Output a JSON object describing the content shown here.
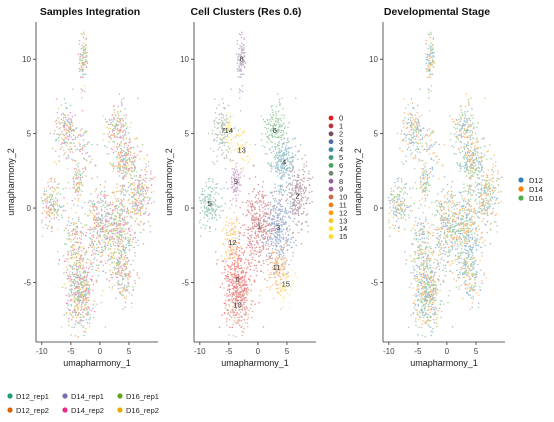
{
  "chart_data": [
    {
      "type": "scatter",
      "title": "Samples Integration",
      "xlabel": "umapharmony_1",
      "ylabel": "umapharmony_2",
      "xticks": [
        -10,
        -5,
        0,
        5
      ],
      "yticks": [
        -5,
        0,
        5,
        10
      ],
      "xlim": [
        -11,
        10
      ],
      "ylim": [
        -9,
        12.5
      ],
      "legend_position": "bottom",
      "series": [
        {
          "name": "D12_rep1",
          "color": "#1b9e77"
        },
        {
          "name": "D12_rep2",
          "color": "#d95f02"
        },
        {
          "name": "D14_rep1",
          "color": "#7570b3"
        },
        {
          "name": "D14_rep2",
          "color": "#e7298a"
        },
        {
          "name": "D16_rep1",
          "color": "#66a61e"
        },
        {
          "name": "D16_rep2",
          "color": "#e6ab02"
        }
      ]
    },
    {
      "type": "scatter",
      "title": "Cell Clusters (Res 0.6)",
      "xlabel": "umapharmony_1",
      "ylabel": "umapharmony_2",
      "xticks": [
        -10,
        -5,
        0,
        5
      ],
      "yticks": [
        -5,
        0,
        5,
        10
      ],
      "xlim": [
        -11,
        10
      ],
      "ylim": [
        -9,
        12.5
      ],
      "legend_position": "right",
      "clusters": [
        {
          "id": "0",
          "color": "#e41a1c",
          "x": -3.5,
          "y": -4.8
        },
        {
          "id": "1",
          "color": "#b7353c",
          "x": 0.2,
          "y": -1.2
        },
        {
          "id": "2",
          "color": "#7e4c61",
          "x": 6.8,
          "y": 0.8
        },
        {
          "id": "3",
          "color": "#4a70a8",
          "x": 3.5,
          "y": -1.3
        },
        {
          "id": "4",
          "color": "#3b8aa2",
          "x": 4.5,
          "y": 3.1
        },
        {
          "id": "5",
          "color": "#409c74",
          "x": -8.3,
          "y": 0.3
        },
        {
          "id": "6",
          "color": "#4aa35a",
          "x": 2.9,
          "y": 5.2
        },
        {
          "id": "7",
          "color": "#6b8a6f",
          "x": -6.0,
          "y": 5.2
        },
        {
          "id": "8",
          "color": "#8d639a",
          "x": -2.8,
          "y": 10.0
        },
        {
          "id": "9",
          "color": "#a35b9f",
          "x": -3.8,
          "y": 1.8
        },
        {
          "id": "10",
          "color": "#ca6b49",
          "x": -3.5,
          "y": -6.5
        },
        {
          "id": "11",
          "color": "#ee7d1d",
          "x": 3.2,
          "y": -4.0
        },
        {
          "id": "12",
          "color": "#fe9c07",
          "x": -4.4,
          "y": -2.3
        },
        {
          "id": "13",
          "color": "#ffc41f",
          "x": -2.8,
          "y": 3.9
        },
        {
          "id": "14",
          "color": "#ffe52e",
          "x": -5.0,
          "y": 5.2
        },
        {
          "id": "15",
          "color": "#ffd92f",
          "x": 4.8,
          "y": -5.1
        }
      ]
    },
    {
      "type": "scatter",
      "title": "Developmental Stage",
      "xlabel": "umapharmony_1",
      "ylabel": "umapharmony_2",
      "xticks": [
        -10,
        -5,
        0,
        5
      ],
      "yticks": [
        -5,
        0,
        5,
        10
      ],
      "xlim": [
        -11,
        10
      ],
      "ylim": [
        -9,
        12.5
      ],
      "legend_position": "right",
      "series": [
        {
          "name": "D12",
          "color": "#377eb8"
        },
        {
          "name": "D14",
          "color": "#ff7f00"
        },
        {
          "name": "D16",
          "color": "#4daf4a"
        }
      ]
    }
  ]
}
